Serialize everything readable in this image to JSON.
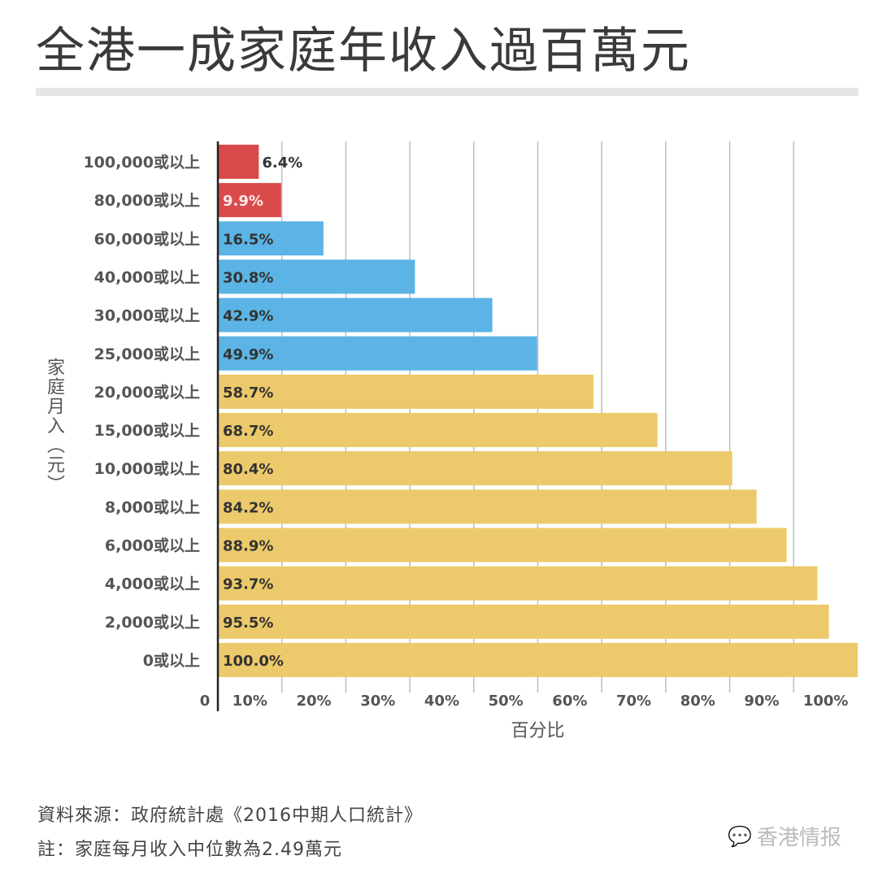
{
  "chart_data": {
    "type": "bar",
    "orientation": "horizontal",
    "title": "全港一成家庭年收入過百萬元",
    "ylabel": "家庭月入（元）",
    "xlabel": "百分比",
    "xlim": [
      0,
      100
    ],
    "xticks": [
      "0",
      "10%",
      "20%",
      "30%",
      "40%",
      "50%",
      "60%",
      "70%",
      "80%",
      "90%",
      "100%"
    ],
    "grid": true,
    "categories": [
      "100,000或以上",
      "80,000或以上",
      "60,000或以上",
      "40,000或以上",
      "30,000或以上",
      "25,000或以上",
      "20,000或以上",
      "15,000或以上",
      "10,000或以上",
      "8,000或以上",
      "6,000或以上",
      "4,000或以上",
      "2,000或以上",
      "0或以上"
    ],
    "values": [
      6.4,
      9.9,
      16.5,
      30.8,
      42.9,
      49.9,
      58.7,
      68.7,
      80.4,
      84.2,
      88.9,
      93.7,
      95.5,
      100.0
    ],
    "value_labels": [
      "6.4%",
      "9.9%",
      "16.5%",
      "30.8%",
      "42.9%",
      "49.9%",
      "58.7%",
      "68.7%",
      "80.4%",
      "84.2%",
      "88.9%",
      "93.7%",
      "95.5%",
      "100.0%"
    ],
    "bar_colors": [
      "#d94b4b",
      "#d94b4b",
      "#5bb4e5",
      "#5bb4e5",
      "#5bb4e5",
      "#5bb4e5",
      "#ecc96a",
      "#ecc96a",
      "#ecc96a",
      "#ecc96a",
      "#ecc96a",
      "#ecc96a",
      "#ecc96a",
      "#ecc96a"
    ]
  },
  "footer": {
    "source": "資料來源：政府統計處《2016中期人口統計》",
    "note": "註：家庭每月收入中位數為2.49萬元"
  },
  "watermark": {
    "text": "香港情报",
    "icon": "wechat-icon"
  }
}
